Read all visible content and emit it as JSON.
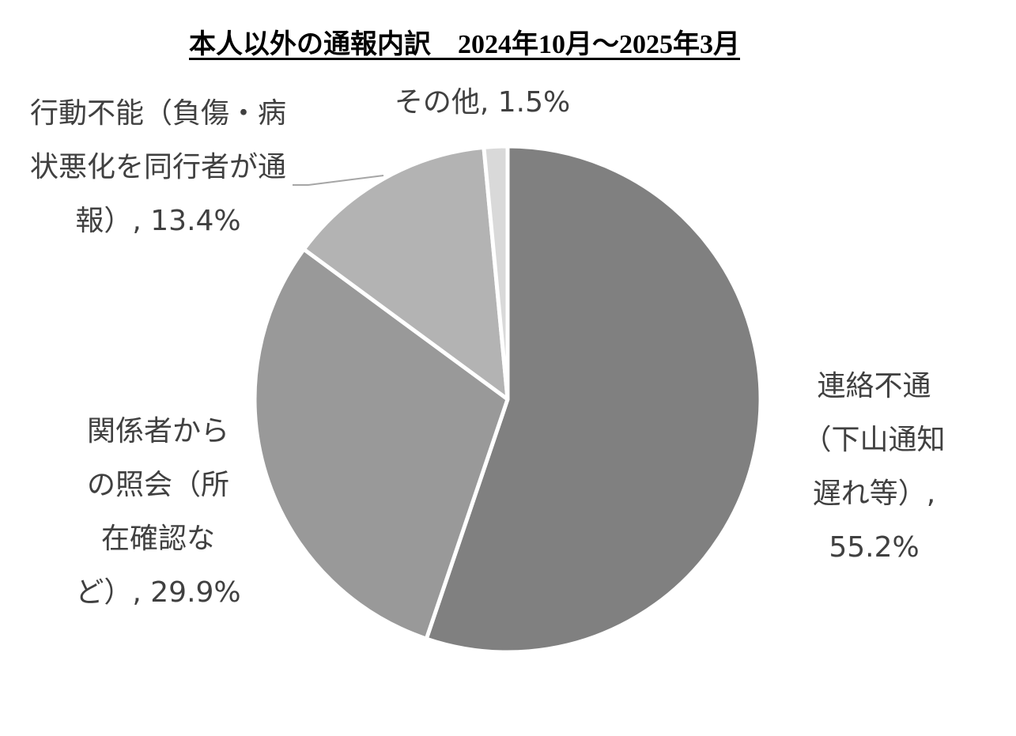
{
  "chart_data": {
    "type": "pie",
    "title": "本人以外の通報内訳　2024年10月～2025年3月",
    "categories": [
      "連絡不通（下山通知遅れ等）",
      "関係者からの照会（所在確認など）",
      "行動不能（負傷・病状悪化を同行者が通報）",
      "その他"
    ],
    "values": [
      55.2,
      29.9,
      13.4,
      1.5
    ],
    "value_labels": [
      "55.2%",
      "29.9%",
      "13.4%",
      "1.5%"
    ],
    "label_separator": ", ",
    "colors": [
      "#808080",
      "#999999",
      "#b3b3b3",
      "#d9d9d9"
    ]
  }
}
